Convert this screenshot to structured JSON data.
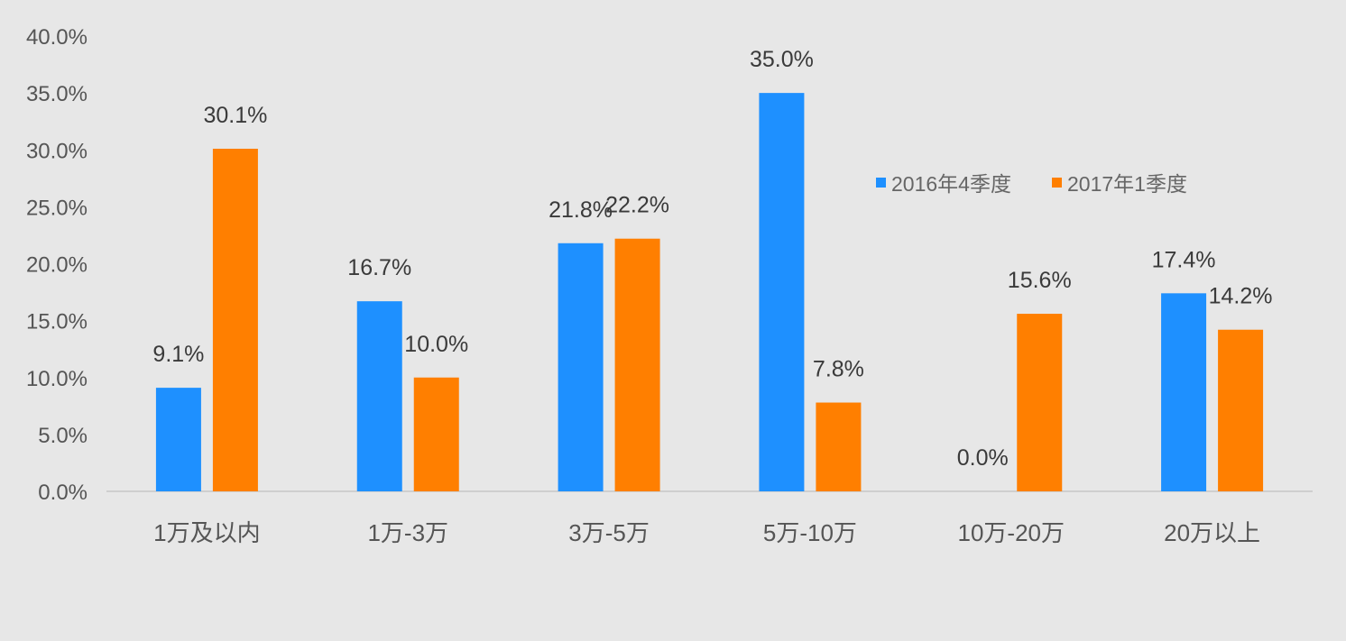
{
  "chart_data": {
    "type": "bar",
    "categories": [
      "1万及以内",
      "1万-3万",
      "3万-5万",
      "5万-10万",
      "10万-20万",
      "20万以上"
    ],
    "series": [
      {
        "name": "2016年4季度",
        "color": "#1e90ff",
        "values": [
          9.1,
          16.7,
          21.8,
          35.0,
          0.0,
          17.4
        ]
      },
      {
        "name": "2017年1季度",
        "color": "#ff7f00",
        "values": [
          30.1,
          10.0,
          22.2,
          7.8,
          15.6,
          14.2
        ]
      }
    ],
    "data_labels": [
      [
        "9.1%",
        "16.7%",
        "21.8%",
        "35.0%",
        "0.0%",
        "17.4%"
      ],
      [
        "30.1%",
        "10.0%",
        "22.2%",
        "7.8%",
        "15.6%",
        "14.2%"
      ]
    ],
    "yticks": [
      "0.0%",
      "5.0%",
      "10.0%",
      "15.0%",
      "20.0%",
      "25.0%",
      "30.0%",
      "35.0%",
      "40.0%"
    ],
    "ylim": [
      0,
      40
    ],
    "title": "",
    "xlabel": "",
    "ylabel": "",
    "legend_position": "top-right",
    "grid": false
  }
}
